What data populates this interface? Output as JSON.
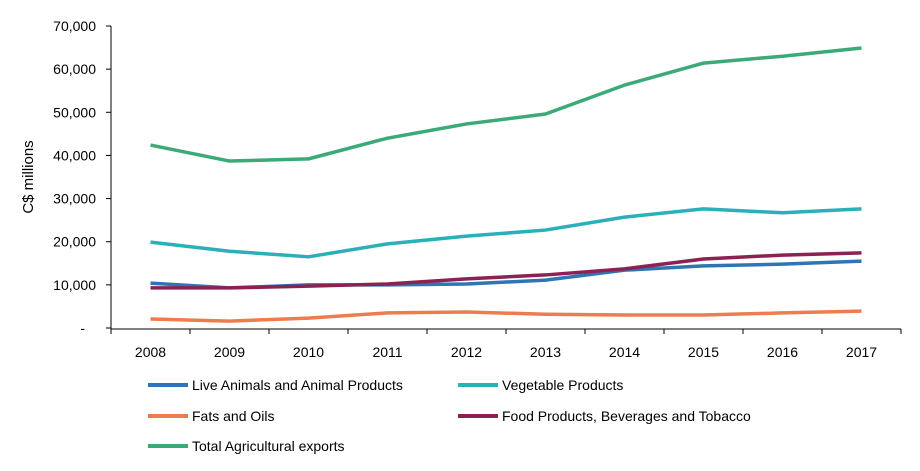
{
  "chart_data": {
    "type": "line",
    "title": "",
    "xlabel": "",
    "ylabel": "C$ millions",
    "ylim": [
      0,
      70000
    ],
    "yticks": [
      "-",
      "10,000",
      "20,000",
      "30,000",
      "40,000",
      "50,000",
      "60,000",
      "70,000"
    ],
    "categories": [
      "2008",
      "2009",
      "2010",
      "2011",
      "2012",
      "2013",
      "2014",
      "2015",
      "2016",
      "2017"
    ],
    "grid": false,
    "legend_position": "bottom",
    "series": [
      {
        "name": "Live Animals and Animal Products",
        "color": "#2E75B6",
        "values": [
          10400,
          9300,
          10000,
          10000,
          10200,
          11100,
          13400,
          14400,
          14800,
          15500
        ]
      },
      {
        "name": "Vegetable Products",
        "color": "#2BB0BA",
        "values": [
          19900,
          17800,
          16500,
          19500,
          21300,
          22700,
          25700,
          27600,
          26700,
          27600
        ]
      },
      {
        "name": "Fats and Oils",
        "color": "#ED7D4F",
        "values": [
          2100,
          1600,
          2300,
          3500,
          3700,
          3200,
          3000,
          3000,
          3500,
          3900
        ]
      },
      {
        "name": "Food Products, Beverages and Tobacco",
        "color": "#8B2252",
        "values": [
          9300,
          9300,
          9700,
          10200,
          11400,
          12300,
          13700,
          16000,
          16900,
          17400
        ]
      },
      {
        "name": "Total Agricultural exports",
        "color": "#3BAA78",
        "values": [
          42400,
          38700,
          39200,
          44000,
          47300,
          49600,
          56300,
          61400,
          63000,
          64900
        ]
      }
    ]
  }
}
